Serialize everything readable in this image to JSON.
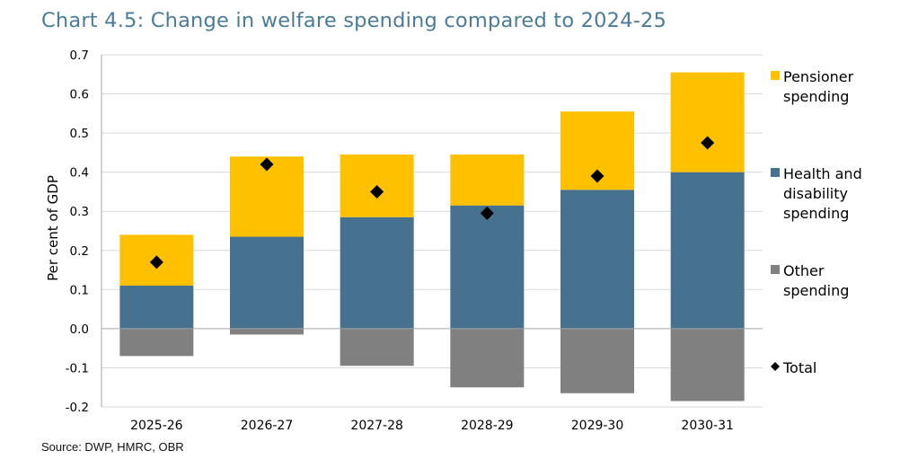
{
  "title": "Chart 4.5: Change in welfare spending compared to 2024-25",
  "source": "Source: DWP, HMRC, OBR",
  "chart_data": {
    "type": "bar",
    "stacked": true,
    "categories": [
      "2025-26",
      "2026-27",
      "2027-28",
      "2028-29",
      "2029-30",
      "2030-31"
    ],
    "ylabel": "Per cent of GDP",
    "ylim": [
      -0.2,
      0.7
    ],
    "yticks": [
      -0.2,
      -0.1,
      0.0,
      0.1,
      0.2,
      0.3,
      0.4,
      0.5,
      0.6,
      0.7
    ],
    "ytick_labels": [
      "-0.2",
      "-0.1",
      "0.0",
      "0.1",
      "0.2",
      "0.3",
      "0.4",
      "0.5",
      "0.6",
      "0.7"
    ],
    "grid": true,
    "legend_position": "right",
    "series": [
      {
        "name": "Pensioner spending",
        "legend_lines": [
          "Pensioner",
          "spending"
        ],
        "color": "#ffc000",
        "values": [
          0.13,
          0.205,
          0.16,
          0.13,
          0.2,
          0.255
        ]
      },
      {
        "name": "Health and disability spending",
        "legend_lines": [
          "Health and",
          "disability",
          "spending"
        ],
        "color": "#467290",
        "values": [
          0.11,
          0.235,
          0.285,
          0.315,
          0.355,
          0.4
        ]
      },
      {
        "name": "Other spending",
        "legend_lines": [
          "Other",
          "spending"
        ],
        "color": "#808080",
        "values": [
          -0.07,
          -0.015,
          -0.095,
          -0.15,
          -0.165,
          -0.185
        ]
      }
    ],
    "total": {
      "name": "Total",
      "legend_lines": [
        "Total"
      ],
      "color": "#000000",
      "marker": "diamond",
      "values": [
        0.17,
        0.42,
        0.35,
        0.295,
        0.39,
        0.475
      ]
    }
  }
}
